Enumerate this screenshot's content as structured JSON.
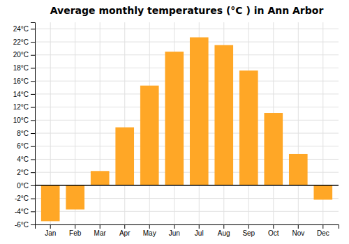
{
  "chart_data": {
    "type": "bar",
    "title": "Average monthly temperatures (°C ) in Ann Arbor",
    "categories": [
      "Jan",
      "Feb",
      "Mar",
      "Apr",
      "May",
      "Jun",
      "Jul",
      "Aug",
      "Sep",
      "Oct",
      "Nov",
      "Dec"
    ],
    "values": [
      -5.5,
      -3.7,
      2.2,
      8.9,
      15.3,
      20.5,
      22.7,
      21.5,
      17.6,
      11.1,
      4.8,
      -2.2
    ],
    "color": "#FFA726",
    "ylim": [
      -6,
      25
    ],
    "yticks": [
      {
        "value": -6,
        "label": "-6°C"
      },
      {
        "value": -4,
        "label": "-4°C"
      },
      {
        "value": -2,
        "label": "-2°C"
      },
      {
        "value": 0,
        "label": "0°C"
      },
      {
        "value": 2,
        "label": "2°C"
      },
      {
        "value": 4,
        "label": "4°C"
      },
      {
        "value": 6,
        "label": "6°C"
      },
      {
        "value": 8,
        "label": "8°C"
      },
      {
        "value": 10,
        "label": "10°C"
      },
      {
        "value": 12,
        "label": "12°C"
      },
      {
        "value": 14,
        "label": "14°C"
      },
      {
        "value": 16,
        "label": "16°C"
      },
      {
        "value": 18,
        "label": "18°C"
      },
      {
        "value": 20,
        "label": "20°C"
      },
      {
        "value": 22,
        "label": "22°C"
      },
      {
        "value": 24,
        "label": "24°C"
      }
    ],
    "grid": true
  }
}
